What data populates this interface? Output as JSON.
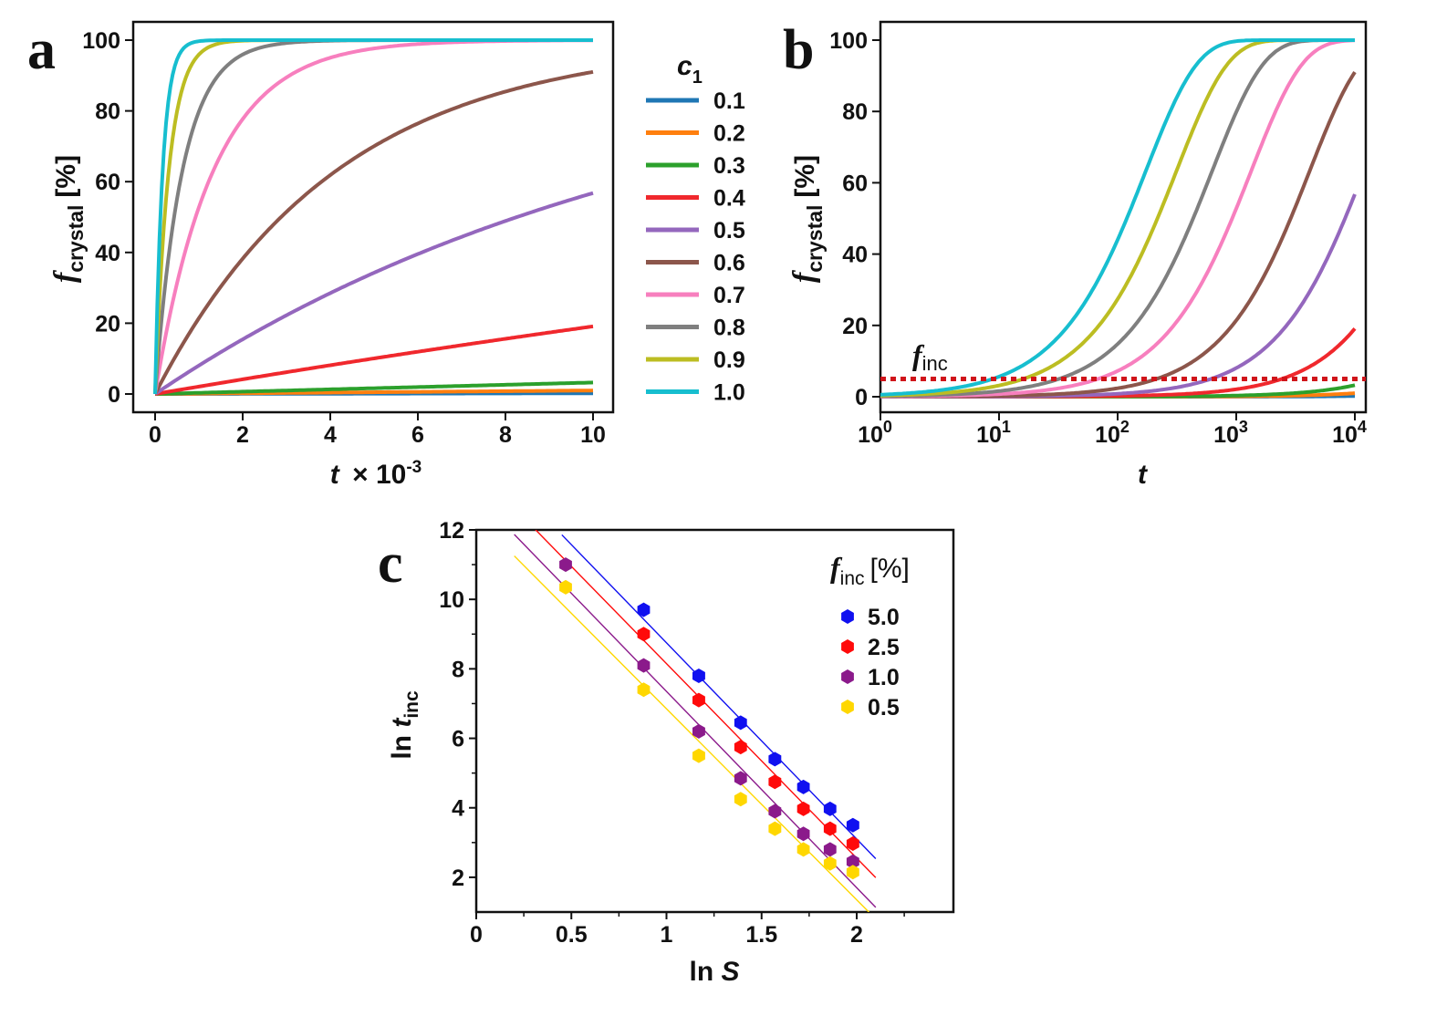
{
  "chart_data": [
    {
      "panel": "a",
      "type": "line",
      "title": "",
      "xlabel": {
        "var": "t",
        "text": "× 10",
        "sup": "-3"
      },
      "ylabel": {
        "var": "f",
        "sub": "crystal",
        "text": "[%]"
      },
      "xlim": [
        0,
        10
      ],
      "ylim": [
        0,
        100
      ],
      "xticks": [
        "0",
        "2",
        "4",
        "6",
        "8",
        "10"
      ],
      "yticks": [
        "0",
        "20",
        "40",
        "60",
        "80",
        "100"
      ],
      "model": "f = 100 (1 - exp(-k t))",
      "series": [
        {
          "name": "0.1",
          "color": "#1f77b4",
          "k": 2e-07
        },
        {
          "name": "0.2",
          "color": "#ff7f0e",
          "k": 1e-06
        },
        {
          "name": "0.3",
          "color": "#2ca02c",
          "k": 3.3e-06
        },
        {
          "name": "0.4",
          "color": "#f0282d",
          "k": 2.12e-05
        },
        {
          "name": "0.5",
          "color": "#9467bd",
          "k": 8.39e-05
        },
        {
          "name": "0.6",
          "color": "#8c564b",
          "k": 0.000241
        },
        {
          "name": "0.7",
          "color": "#f77fbe",
          "k": 0.00075
        },
        {
          "name": "0.8",
          "color": "#7f7f7f",
          "k": 0.0016
        },
        {
          "name": "0.9",
          "color": "#bcbd22",
          "k": 0.0032
        },
        {
          "name": "1.0",
          "color": "#17becf",
          "k": 0.0058
        }
      ],
      "legend": {
        "title_var": "c",
        "title_sub": "1",
        "placement": "right"
      }
    },
    {
      "panel": "b",
      "type": "line",
      "xscale": "log",
      "xlabel": {
        "var": "t"
      },
      "ylabel": {
        "var": "f",
        "sub": "crystal",
        "text": "[%]"
      },
      "xlim": [
        1,
        10000
      ],
      "ylim": [
        0,
        100
      ],
      "xticks": [
        {
          "base": "10",
          "exp": "0"
        },
        {
          "base": "10",
          "exp": "1"
        },
        {
          "base": "10",
          "exp": "2"
        },
        {
          "base": "10",
          "exp": "3"
        },
        {
          "base": "10",
          "exp": "4"
        }
      ],
      "yticks": [
        "0",
        "20",
        "40",
        "60",
        "80",
        "100"
      ],
      "reference_line": {
        "label_var": "f",
        "label_sub": "inc",
        "y": 5,
        "style": "dotted",
        "color": "#d0141a"
      }
    },
    {
      "panel": "c",
      "type": "scatter",
      "xlabel": {
        "text": "ln ",
        "var": "S"
      },
      "ylabel": {
        "text": "ln ",
        "var": "t",
        "sub": "inc"
      },
      "xlim": [
        0,
        2.5
      ],
      "ylim": [
        1,
        12
      ],
      "xticks": [
        "0",
        "0.5",
        "1",
        "1.5",
        "2"
      ],
      "yticks": [
        "2",
        "4",
        "6",
        "8",
        "10",
        "12"
      ],
      "legend": {
        "title_var": "f",
        "title_sub": "inc",
        "title_text": "[%]",
        "placement": "top-right"
      },
      "series": [
        {
          "name": "5.0",
          "color": "#1010f0",
          "points": [
            [
              0.88,
              9.7
            ],
            [
              1.17,
              7.8
            ],
            [
              1.39,
              6.45
            ],
            [
              1.57,
              5.4
            ],
            [
              1.72,
              4.6
            ],
            [
              1.86,
              3.97
            ],
            [
              1.98,
              3.5
            ]
          ],
          "fit": {
            "slope": -5.65,
            "intercept": 14.4,
            "x_range": [
              0.45,
              2.1
            ]
          }
        },
        {
          "name": "2.5",
          "color": "#ff0a0a",
          "points": [
            [
              0.88,
              9.0
            ],
            [
              1.17,
              7.1
            ],
            [
              1.39,
              5.75
            ],
            [
              1.57,
              4.75
            ],
            [
              1.72,
              3.97
            ],
            [
              1.86,
              3.4
            ],
            [
              1.98,
              2.97
            ]
          ],
          "fit": {
            "slope": -5.6,
            "intercept": 13.75,
            "x_range": [
              0.3,
              2.1
            ]
          }
        },
        {
          "name": "1.0",
          "color": "#8b1a8b",
          "points": [
            [
              0.47,
              11.0
            ],
            [
              0.88,
              8.1
            ],
            [
              1.17,
              6.2
            ],
            [
              1.39,
              4.85
            ],
            [
              1.57,
              3.9
            ],
            [
              1.72,
              3.25
            ],
            [
              1.86,
              2.8
            ],
            [
              1.98,
              2.45
            ]
          ],
          "fit": {
            "slope": -5.65,
            "intercept": 13.0,
            "x_range": [
              0.2,
              2.1
            ]
          }
        },
        {
          "name": "0.5",
          "color": "#ffd700",
          "points": [
            [
              0.47,
              10.35
            ],
            [
              0.88,
              7.4
            ],
            [
              1.17,
              5.5
            ],
            [
              1.39,
              4.25
            ],
            [
              1.57,
              3.4
            ],
            [
              1.72,
              2.8
            ],
            [
              1.86,
              2.4
            ],
            [
              1.98,
              2.15
            ]
          ],
          "fit": {
            "slope": -5.5,
            "intercept": 12.35,
            "x_range": [
              0.2,
              2.1
            ]
          }
        }
      ]
    }
  ]
}
